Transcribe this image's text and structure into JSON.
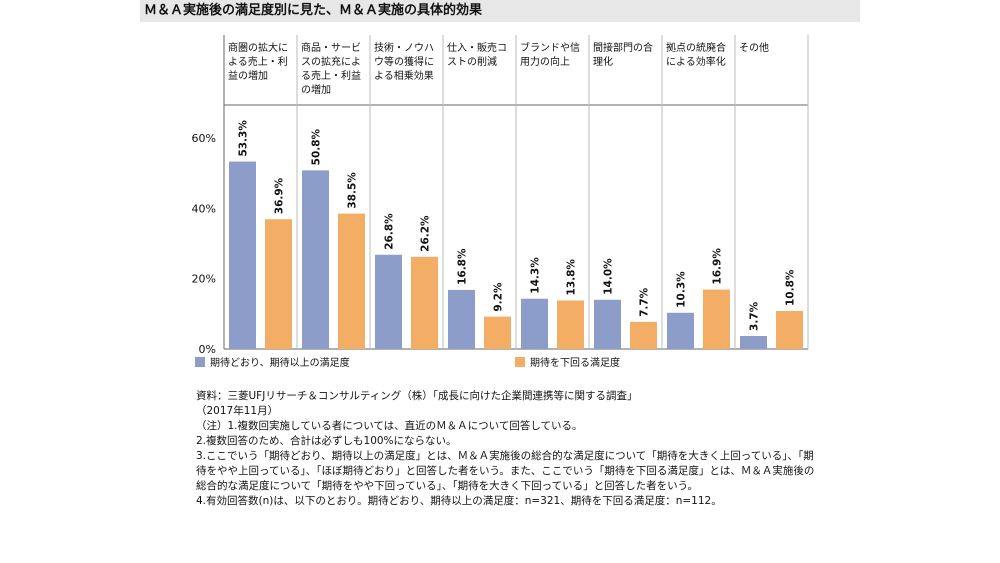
{
  "title": "Ｍ＆Ａ実施後の満足度別に見た、Ｍ＆Ａ実施の具体的効果",
  "colors": {
    "series1": "#8b9dc8",
    "series2": "#f3ad64",
    "grid": "#bbbbbb"
  },
  "chart_data": {
    "type": "bar",
    "categories": [
      "商圏の拡大による売上・利益の増加",
      "商品・サービスの拡充による売上・利益の増加",
      "技術・ノウハウ等の獲得による相乗効果",
      "仕入・販売コストの削減",
      "ブランドや信用力の向上",
      "間接部門の合理化",
      "拠点の統廃合による効率化",
      "その他"
    ],
    "series": [
      {
        "name": "期待どおり、期待以上の満足度",
        "values": [
          53.3,
          50.8,
          26.8,
          16.8,
          14.3,
          14.0,
          10.3,
          3.7
        ]
      },
      {
        "name": "期待を下回る満足度",
        "values": [
          36.9,
          38.5,
          26.2,
          9.2,
          13.8,
          7.7,
          16.9,
          10.8
        ]
      }
    ],
    "yticks": [
      "0%",
      "20%",
      "40%",
      "60%"
    ],
    "ylim": [
      0,
      60
    ],
    "grid": false,
    "legend_position": "bottom"
  },
  "notes": [
    "資料：三菱UFJリサーチ＆コンサルティング（株）「成長に向けた企業間連携等に関する調査」",
    "（2017年11月）",
    "（注）1.複数回実施している者については、直近のＭ＆Ａについて回答している。",
    "2.複数回答のため、合計は必ずしも100%にならない。",
    "3.ここでいう「期待どおり、期待以上の満足度」とは、Ｍ＆Ａ実施後の総合的な満足度について「期待を大きく上回っている」、「期待をやや上回っている」、「ほぼ期待どおり」と回答した者をいう。また、ここでいう「期待を下回る満足度」とは、Ｍ＆Ａ実施後の総合的な満足度について「期待をやや下回っている」、「期待を大きく下回っている」と回答した者をいう。",
    "4.有効回答数(n)は、以下のとおり。期待どおり、期待以上の満足度：n=321、期待を下回る満足度：n=112。"
  ]
}
